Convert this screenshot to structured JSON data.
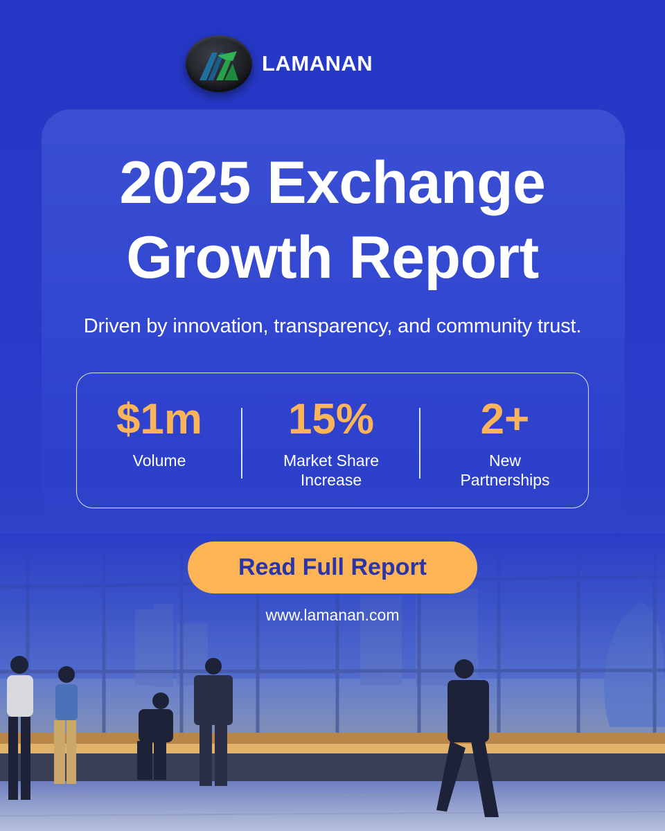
{
  "brand": {
    "name": "LAMANAN",
    "logo_icon": "lamanan-logo-icon",
    "colors": {
      "teal": "#1f6fa0",
      "green": "#27a04a",
      "dark": "#1e2026"
    }
  },
  "headline": {
    "line1": "2025 Exchange",
    "line2": "Growth Report"
  },
  "subtitle": "Driven by innovation, transparency, and community trust.",
  "stats": [
    {
      "value": "$1m",
      "label_line1": "Volume",
      "label_line2": ""
    },
    {
      "value": "15%",
      "label_line1": "Market Share",
      "label_line2": "Increase"
    },
    {
      "value": "2+",
      "label_line1": "New",
      "label_line2": "Partnerships"
    }
  ],
  "cta": {
    "label": "Read Full Report"
  },
  "website": "www.lamanan.com",
  "colors": {
    "background": "#2638c4",
    "card": "#3a4fd2",
    "accent": "#fcb454",
    "stat_value": "#fbb45a",
    "cta_text": "#2a35a8"
  }
}
